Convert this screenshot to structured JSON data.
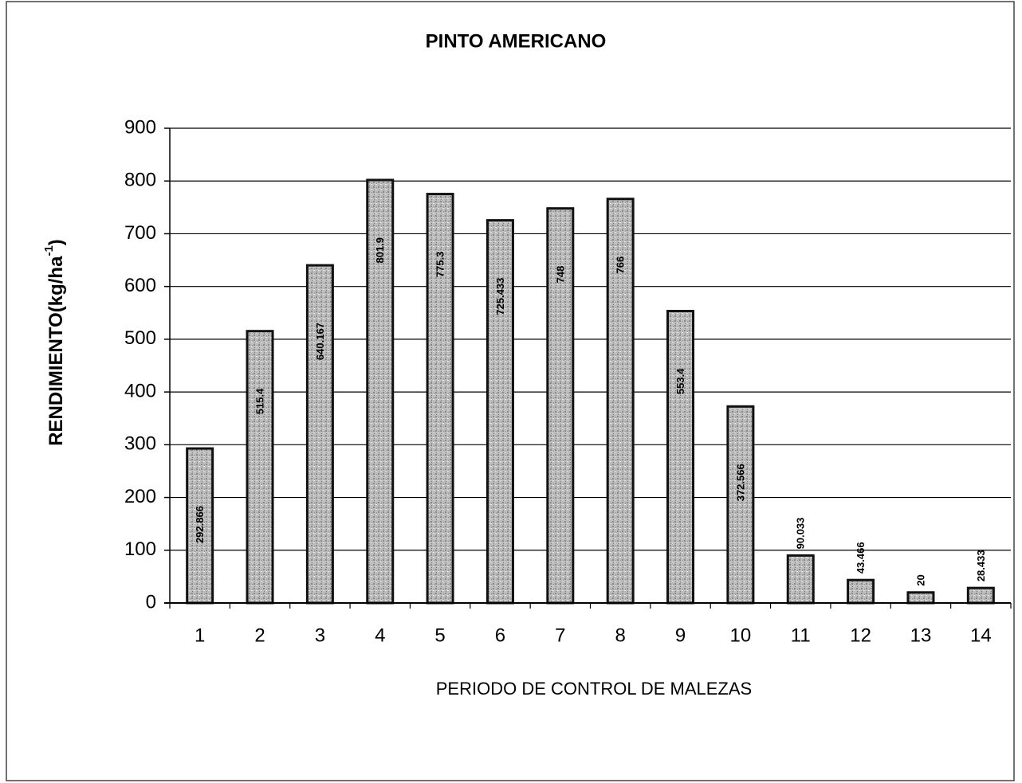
{
  "chart_data": {
    "type": "bar",
    "title": "PINTO AMERICANO",
    "x_label": "PERIODO DE CONTROL DE MALEZAS",
    "y_label": [
      "RENDIMIENTO(kg/ha",
      "-1",
      ")"
    ],
    "categories": [
      "1",
      "2",
      "3",
      "4",
      "5",
      "6",
      "7",
      "8",
      "9",
      "10",
      "11",
      "12",
      "13",
      "14"
    ],
    "values": [
      292.866,
      515.4,
      640.167,
      801.9,
      775.3,
      725.433,
      748,
      766,
      553.4,
      372.566,
      90.033,
      43.466,
      20,
      28.433
    ],
    "color": "#b8b8b8",
    "ylim": [
      0,
      900
    ],
    "yticks": [
      0,
      100,
      200,
      300,
      400,
      500,
      600,
      700,
      800,
      900
    ],
    "grid": true
  }
}
